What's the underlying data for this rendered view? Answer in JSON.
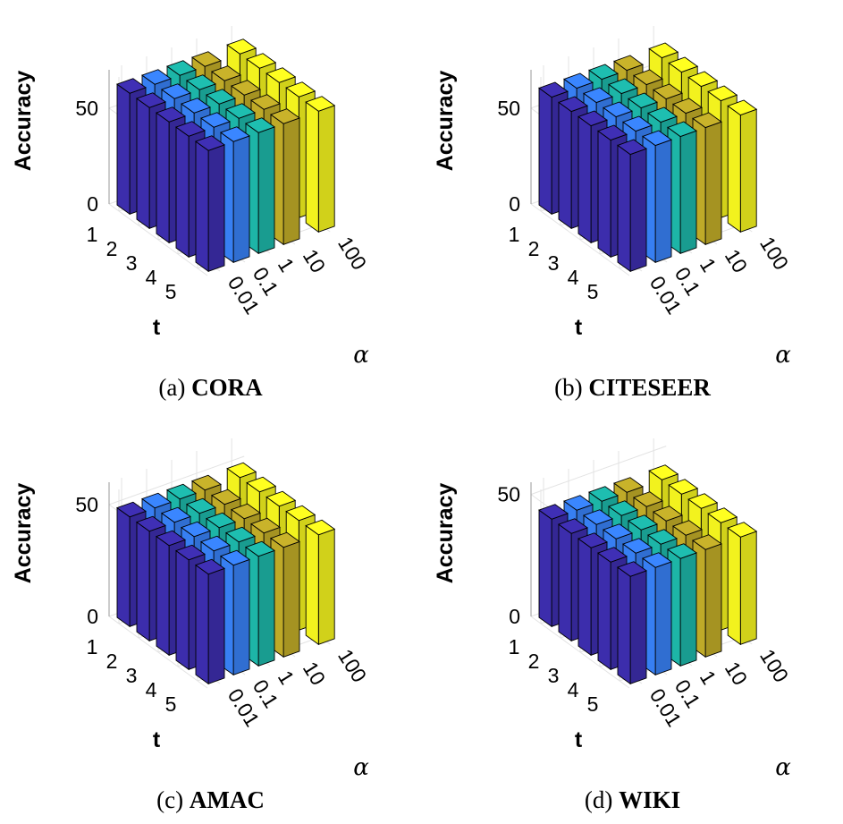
{
  "chart_data": [
    {
      "type": "bar3d",
      "caption_prefix": "(a)",
      "caption_name": "CORA",
      "zlabel": "Accuracy",
      "t_label": "t",
      "alpha_label": "α",
      "t_ticks": [
        "1",
        "2",
        "3",
        "4",
        "5"
      ],
      "alpha_ticks": [
        "0.01",
        "0.1",
        "1",
        "10",
        "100"
      ],
      "z_ticks": [
        "0",
        "50"
      ],
      "zlim": [
        0,
        70
      ],
      "values": [
        [
          63,
          63,
          63,
          63,
          63
        ],
        [
          63,
          63,
          63,
          63,
          63
        ],
        [
          63,
          63,
          63,
          63,
          63
        ],
        [
          63,
          63,
          63,
          63,
          63
        ],
        [
          63,
          63,
          63,
          63,
          63
        ]
      ]
    },
    {
      "type": "bar3d",
      "caption_prefix": "(b)",
      "caption_name": "CITESEER",
      "zlabel": "Accuracy",
      "t_label": "t",
      "alpha_label": "α",
      "t_ticks": [
        "1",
        "2",
        "3",
        "4",
        "5"
      ],
      "alpha_ticks": [
        "0.01",
        "0.1",
        "1",
        "10",
        "100"
      ],
      "z_ticks": [
        "0",
        "50"
      ],
      "zlim": [
        0,
        70
      ],
      "values": [
        [
          61,
          61,
          61,
          61,
          61
        ],
        [
          61,
          61,
          61,
          61,
          61
        ],
        [
          61,
          61,
          61,
          61,
          61
        ],
        [
          61,
          61,
          61,
          61,
          61
        ],
        [
          61,
          61,
          61,
          61,
          61
        ]
      ]
    },
    {
      "type": "bar3d",
      "caption_prefix": "(c)",
      "caption_name": "AMAC",
      "zlabel": "Accuracy",
      "t_label": "t",
      "alpha_label": "α",
      "t_ticks": [
        "1",
        "2",
        "3",
        "4",
        "5"
      ],
      "alpha_ticks": [
        "0.01",
        "0.1",
        "1",
        "10",
        "100"
      ],
      "z_ticks": [
        "0",
        "50"
      ],
      "zlim": [
        0,
        60
      ],
      "values": [
        [
          49,
          49,
          49,
          49,
          49
        ],
        [
          49,
          49,
          49,
          49,
          49
        ],
        [
          49,
          49,
          49,
          49,
          49
        ],
        [
          49,
          49,
          49,
          49,
          49
        ],
        [
          49,
          49,
          49,
          49,
          49
        ]
      ]
    },
    {
      "type": "bar3d",
      "caption_prefix": "(d)",
      "caption_name": "WIKI",
      "zlabel": "Accuracy",
      "t_label": "t",
      "alpha_label": "α",
      "t_ticks": [
        "1",
        "2",
        "3",
        "4",
        "5"
      ],
      "alpha_ticks": [
        "0.01",
        "0.1",
        "1",
        "10",
        "100"
      ],
      "z_ticks": [
        "0",
        "50"
      ],
      "zlim": [
        0,
        55
      ],
      "values": [
        [
          44,
          44,
          44,
          44,
          44
        ],
        [
          44,
          44,
          44,
          44,
          44
        ],
        [
          44,
          44,
          44,
          44,
          44
        ],
        [
          44,
          44,
          44,
          44,
          44
        ],
        [
          44,
          44,
          44,
          44,
          44
        ]
      ]
    }
  ],
  "colors": {
    "alpha_series": [
      "#3f2fb5",
      "#3a86ff",
      "#1ebeb0",
      "#c9b32a",
      "#ffff20"
    ],
    "edge": "#000000",
    "grid": "#e3e3e3"
  }
}
